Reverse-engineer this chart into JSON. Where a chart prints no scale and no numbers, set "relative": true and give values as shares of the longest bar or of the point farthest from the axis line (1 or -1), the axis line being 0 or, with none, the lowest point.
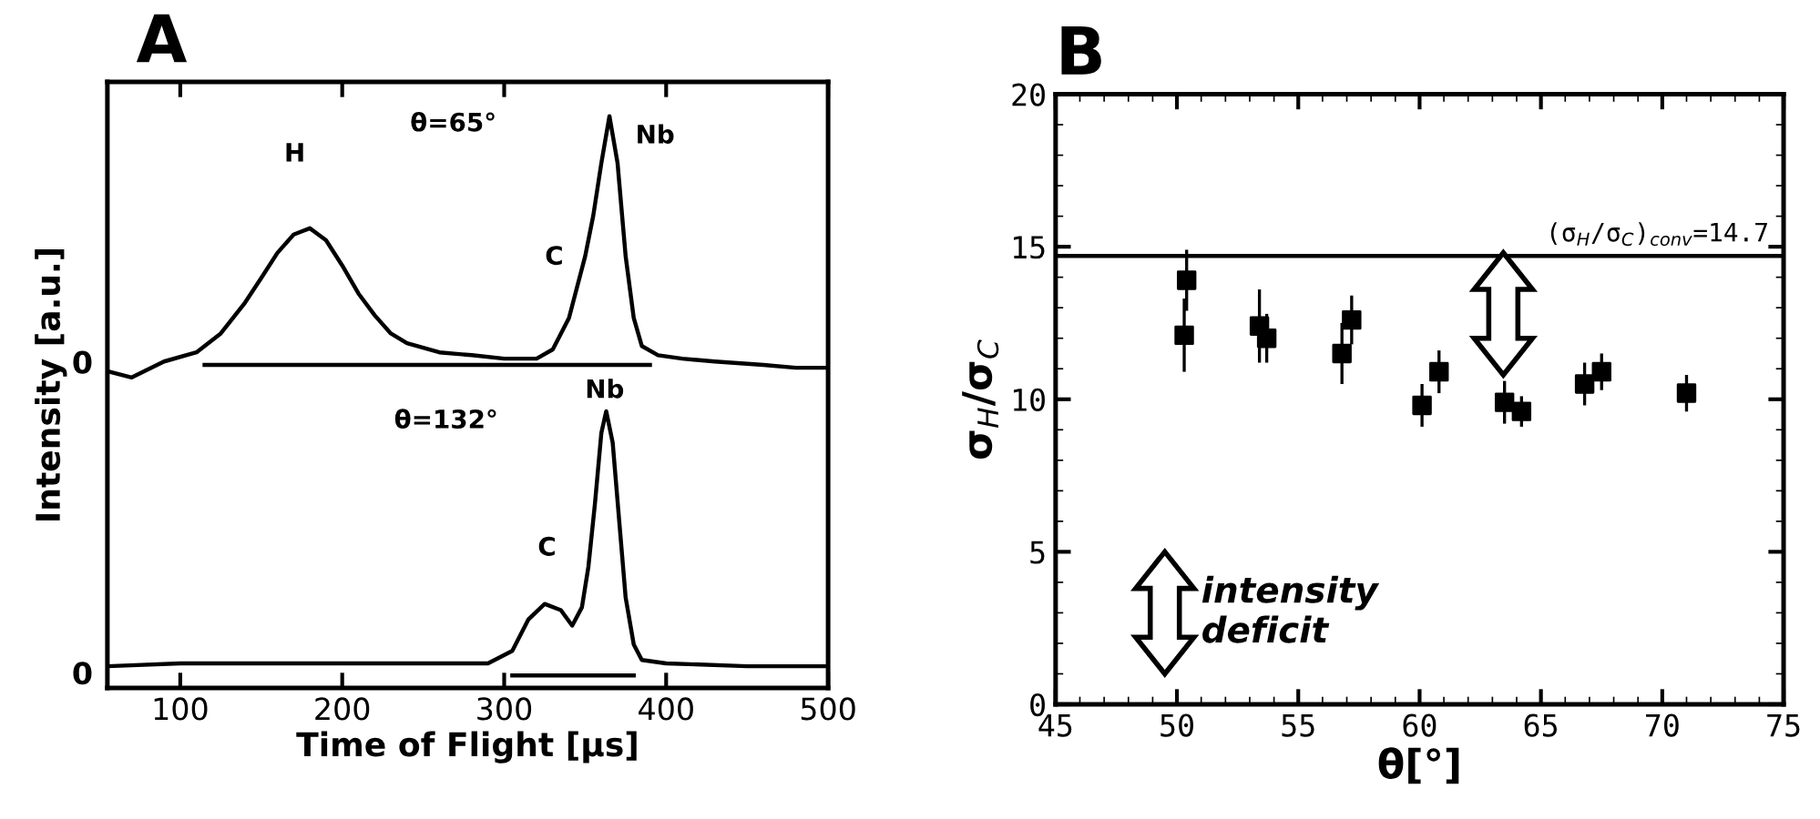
{
  "chart_data": [
    {
      "type": "line",
      "title": "A",
      "xlabel": "Time of Flight [µs]",
      "ylabel": "Intensity [a.u.]",
      "xlim": [
        55,
        500
      ],
      "xticks": [
        100,
        200,
        300,
        400,
        500
      ],
      "relative": true,
      "grid": false,
      "marker": "none",
      "line_style": "solid",
      "series": [
        {
          "color": "#000000",
          "x": [
            55,
            70,
            90,
            110,
            125,
            140,
            150,
            160,
            170,
            180,
            190,
            200,
            210,
            220,
            230,
            240,
            260,
            280,
            300,
            320,
            330,
            340,
            345,
            350,
            355,
            360,
            365,
            370,
            375,
            380,
            385,
            395,
            410,
            430,
            460,
            480,
            500
          ],
          "values": [
            0.554,
            0.543,
            0.571,
            0.587,
            0.62,
            0.674,
            0.717,
            0.761,
            0.793,
            0.804,
            0.783,
            0.739,
            0.69,
            0.652,
            0.62,
            0.603,
            0.587,
            0.582,
            0.576,
            0.576,
            0.592,
            0.647,
            0.701,
            0.755,
            0.826,
            0.918,
            1.0,
            0.918,
            0.755,
            0.647,
            0.598,
            0.582,
            0.576,
            0.571,
            0.565,
            0.56,
            0.56
          ]
        },
        {
          "color": "#000000",
          "x": [
            55,
            100,
            150,
            200,
            250,
            290,
            305,
            315,
            325,
            335,
            342,
            348,
            352,
            356,
            360,
            363,
            367,
            371,
            375,
            380,
            385,
            400,
            450,
            500
          ],
          "values": [
            0.038,
            0.043,
            0.043,
            0.043,
            0.043,
            0.043,
            0.065,
            0.12,
            0.147,
            0.136,
            0.109,
            0.141,
            0.212,
            0.321,
            0.446,
            0.484,
            0.429,
            0.293,
            0.158,
            0.076,
            0.049,
            0.043,
            0.038,
            0.038
          ]
        },
        {
          "color": "#000000",
          "x": [
            115,
            390
          ],
          "values": [
            0.565,
            0.565
          ]
        },
        {
          "color": "#000000",
          "x": [
            305,
            380
          ],
          "values": [
            0.022,
            0.022
          ]
        }
      ],
      "annotations": [
        "θ=65°",
        "H",
        "Nb",
        "C",
        "θ=132°",
        "Nb",
        "C",
        "0",
        "0"
      ]
    },
    {
      "type": "scatter",
      "title": "B",
      "xlabel": "θ[°]",
      "ylabel": "σ$_{H}$/σ$_{C}$",
      "xlim": [
        45,
        75
      ],
      "xticks": [
        45,
        50,
        55,
        60,
        65,
        70,
        75
      ],
      "ylim": [
        0,
        20
      ],
      "yticks": [
        0,
        5,
        10,
        15,
        20
      ],
      "grid": false,
      "marker": "square",
      "series": [
        {
          "color": "#000000",
          "x": [
            50.3,
            50.4,
            53.4,
            53.7,
            56.8,
            57.2,
            60.1,
            60.8,
            63.5,
            64.2,
            66.8,
            67.5,
            71.0
          ],
          "values": [
            12.1,
            13.9,
            12.4,
            12.0,
            11.5,
            12.6,
            9.8,
            10.9,
            9.9,
            9.6,
            10.5,
            10.9,
            10.2
          ],
          "errors": [
            1.2,
            1.0,
            1.2,
            0.8,
            1.0,
            0.8,
            0.7,
            0.7,
            0.7,
            0.5,
            0.7,
            0.6,
            0.6
          ]
        }
      ],
      "ref_lines": [
        {
          "axis": "y",
          "value": 14.7,
          "label": "(σ$_{H}$/σ$_{C}$)$_{conv}$=14.7",
          "color": "#000000",
          "line_style": "solid"
        }
      ],
      "annotations": [
        "intensity\ndeficit"
      ]
    }
  ]
}
